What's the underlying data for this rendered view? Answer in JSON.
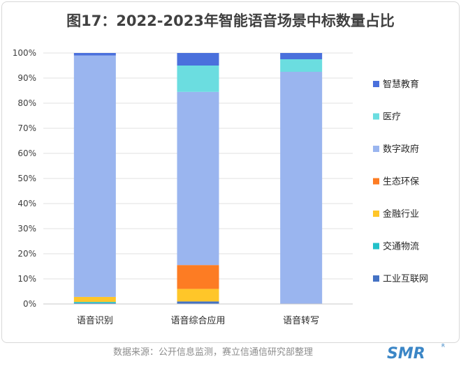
{
  "title": "图17：2022-2023年智能语音场景中标数量占比",
  "source_text": "数据来源：公开信息监测，赛立信通信研究部整理",
  "logo": {
    "text": "SMR",
    "mark": "R"
  },
  "chart_data": {
    "type": "bar",
    "stacked": true,
    "categories": [
      "语音识别",
      "语音综合应用",
      "语音转写"
    ],
    "yticks": [
      "0%",
      "10%",
      "20%",
      "30%",
      "40%",
      "50%",
      "60%",
      "70%",
      "80%",
      "90%",
      "100%"
    ],
    "ylim": [
      0,
      100
    ],
    "grid": true,
    "legend_position": "right",
    "series": [
      {
        "name": "工业互联网",
        "color": "#4472c4",
        "values": [
          0.3,
          1.0,
          0
        ]
      },
      {
        "name": "交通物流",
        "color": "#22c1c9",
        "values": [
          0.5,
          0,
          0
        ]
      },
      {
        "name": "金融行业",
        "color": "#ffc629",
        "values": [
          2.0,
          5.0,
          0
        ]
      },
      {
        "name": "生态环保",
        "color": "#fd7c23",
        "values": [
          0,
          9.5,
          0
        ]
      },
      {
        "name": "数字政府",
        "color": "#9ab5ef",
        "values": [
          96.2,
          69.0,
          92.5
        ]
      },
      {
        "name": "医疗",
        "color": "#6bdde0",
        "values": [
          0,
          10.5,
          5.0
        ]
      },
      {
        "name": "智慧教育",
        "color": "#4a70dc",
        "values": [
          1.0,
          5.0,
          2.5
        ]
      }
    ]
  }
}
